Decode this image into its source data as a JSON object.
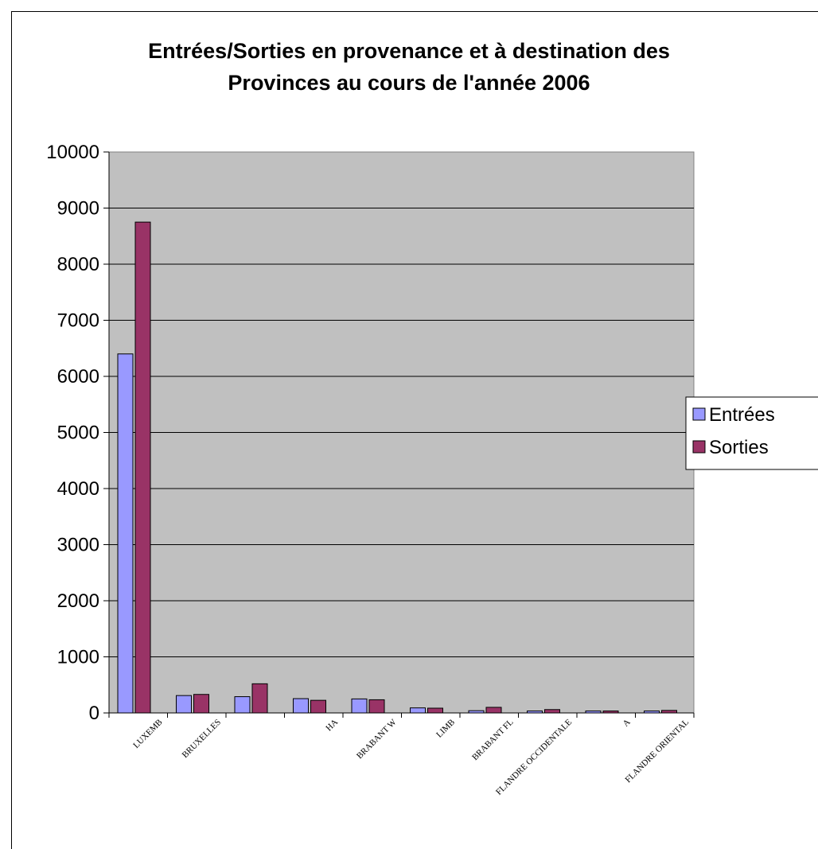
{
  "chart_data": {
    "type": "bar",
    "title_lines": [
      "Entrées/Sorties en provenance et à destination des",
      "Provinces au cours de l'année 2006"
    ],
    "categories": [
      "LUXEMB",
      "BRUXELLES",
      "",
      "HA",
      "BRABANT W",
      "LIMB",
      "BRABANT FL",
      "FLANDRE OCCIDENTALE",
      "A",
      "FLANDRE ORIENTAL"
    ],
    "series": [
      {
        "name": "Entrées",
        "color": "#9999ff",
        "values": [
          6400,
          310,
          290,
          255,
          250,
          90,
          40,
          35,
          35,
          35
        ]
      },
      {
        "name": "Sorties",
        "color": "#993366",
        "values": [
          8750,
          330,
          520,
          225,
          235,
          85,
          100,
          60,
          35,
          45
        ]
      }
    ],
    "ylim": [
      0,
      10000
    ],
    "yticks": [
      "0",
      "1000",
      "2000",
      "3000",
      "4000",
      "5000",
      "6000",
      "7000",
      "8000",
      "9000",
      "10000"
    ],
    "grid": true,
    "plot_background": "#c0c0c0",
    "legend_position": "right"
  }
}
